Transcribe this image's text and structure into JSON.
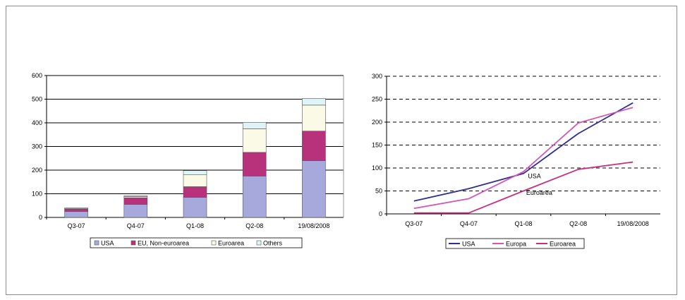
{
  "chart_data": [
    {
      "type": "bar",
      "stacked": true,
      "categories": [
        "Q3-07",
        "Q4-07",
        "Q1-08",
        "Q2-08",
        "19/08/2008"
      ],
      "ylim": [
        0,
        600
      ],
      "yticks": [
        0,
        100,
        200,
        300,
        400,
        500,
        600
      ],
      "grid": true,
      "legend_position": "bottom",
      "series": [
        {
          "name": "USA",
          "color": "#a7a9dd",
          "values": [
            25,
            55,
            85,
            175,
            240
          ]
        },
        {
          "name": "EU, Non-euroarea",
          "color": "#b8317b",
          "values": [
            10,
            28,
            45,
            100,
            125
          ]
        },
        {
          "name": "Euroarea",
          "color": "#fafae6",
          "values": [
            3,
            5,
            50,
            100,
            110
          ]
        },
        {
          "name": "Others",
          "color": "#dff4f6",
          "values": [
            2,
            4,
            18,
            27,
            28
          ]
        }
      ]
    },
    {
      "type": "line",
      "categories": [
        "Q3-07",
        "Q4-07",
        "Q1-08",
        "Q2-08",
        "19/08/2008"
      ],
      "ylim": [
        0,
        300
      ],
      "yticks": [
        0,
        50,
        100,
        150,
        200,
        250,
        300
      ],
      "grid": "dashed",
      "legend_position": "bottom",
      "series": [
        {
          "name": "USA",
          "color": "#2e2e96",
          "values": [
            28,
            55,
            88,
            175,
            242
          ]
        },
        {
          "name": "Europa",
          "color": "#d257b7",
          "values": [
            12,
            33,
            92,
            198,
            232
          ]
        },
        {
          "name": "Euroarea",
          "color": "#c8307f",
          "values": [
            2,
            2,
            50,
            97,
            113
          ]
        }
      ],
      "annotations": [
        {
          "text": "USA",
          "x_index": 2.08,
          "y": 82
        },
        {
          "text": "Euroarea",
          "x_index": 2.05,
          "y": 46
        }
      ]
    }
  ]
}
